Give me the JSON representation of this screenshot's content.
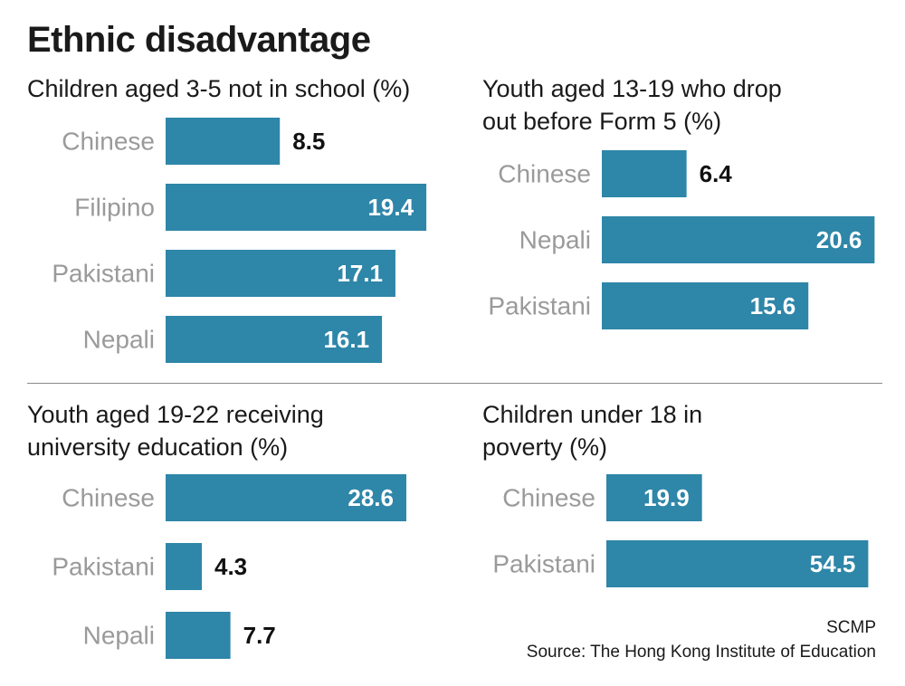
{
  "title": "Ethnic disadvantage",
  "credit": "SCMP",
  "source": "Source: The Hong Kong Institute of Education",
  "colors": {
    "bar": "#2e86a8",
    "category_text": "#9a9a9a",
    "value_text": "#111111",
    "divider": "#8a8a8a"
  },
  "chart_data": [
    {
      "type": "bar",
      "orientation": "horizontal",
      "title": [
        "Children aged 3-5 not in school (%)"
      ],
      "categories": [
        "Chinese",
        "Filipino",
        "Pakistani",
        "Nepali"
      ],
      "values": [
        8.5,
        19.4,
        17.1,
        16.1
      ],
      "value_labels": [
        "8.5",
        "19.4",
        "17.1",
        "16.1"
      ]
    },
    {
      "type": "bar",
      "orientation": "horizontal",
      "title": [
        "Youth aged 13-19 who drop",
        "out before Form 5 (%)"
      ],
      "categories": [
        "Chinese",
        "Nepali",
        "Pakistani"
      ],
      "values": [
        6.4,
        20.6,
        15.6
      ],
      "value_labels": [
        "6.4",
        "20.6",
        "15.6"
      ]
    },
    {
      "type": "bar",
      "orientation": "horizontal",
      "title": [
        "Youth aged 19-22 receiving",
        "university education (%)"
      ],
      "categories": [
        "Chinese",
        "Pakistani",
        "Nepali"
      ],
      "values": [
        28.6,
        4.3,
        7.7
      ],
      "value_labels": [
        "28.6",
        "4.3",
        "7.7"
      ]
    },
    {
      "type": "bar",
      "orientation": "horizontal",
      "title": [
        "Children under 18 in",
        "poverty (%)"
      ],
      "categories": [
        "Chinese",
        "Pakistani"
      ],
      "values": [
        19.9,
        54.5
      ],
      "value_labels": [
        "19.9",
        "54.5"
      ]
    }
  ]
}
